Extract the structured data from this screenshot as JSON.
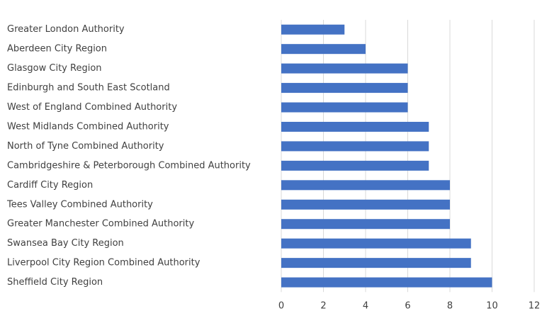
{
  "chart_data": {
    "type": "barh",
    "categories": [
      "Greater London Authority",
      "Aberdeen City Region",
      "Glasgow City Region",
      "Edinburgh and South East Scotland",
      "West of England Combined Authority",
      "West Midlands Combined Authority",
      "North of Tyne Combined Authority",
      "Cambridgeshire & Peterborough Combined Authority",
      "Cardiff City Region",
      "Tees Valley Combined Authority",
      "Greater Manchester Combined Authority",
      "Swansea Bay City Region",
      "Liverpool City Region Combined Authority",
      "Sheffield City Region"
    ],
    "values": [
      3,
      4,
      6,
      6,
      6,
      7,
      7,
      7,
      8,
      8,
      8,
      9,
      9,
      10
    ],
    "color": "#4472c4",
    "xlim": [
      0,
      12
    ],
    "xticks": [
      0,
      2,
      4,
      6,
      8,
      10,
      12
    ],
    "grid": true
  }
}
